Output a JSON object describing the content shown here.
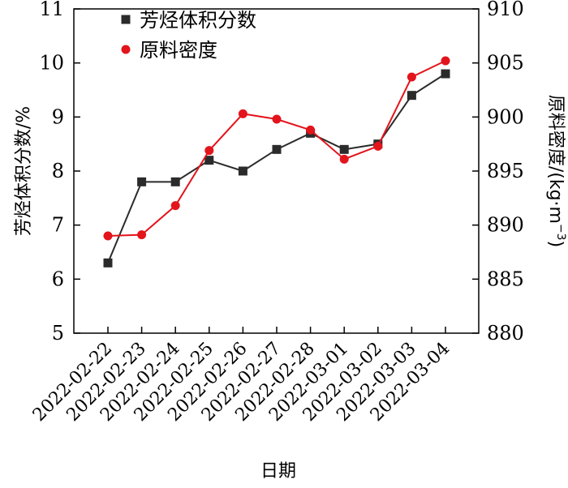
{
  "chart_data": {
    "type": "line",
    "xlabel": "日期",
    "ylabel_left": "芳烃体积分数/%",
    "ylabel_right": "原料密度/(kg·m",
    "ylabel_right_sup": "−3",
    "ylabel_right_close": ")",
    "categories": [
      "2022-02-22",
      "2022-02-23",
      "2022-02-24",
      "2022-02-25",
      "2022-02-26",
      "2022-02-27",
      "2022-02-28",
      "2022-03-01",
      "2022-03-02",
      "2022-03-03",
      "2022-03-04"
    ],
    "left_axis": {
      "range": [
        5,
        11
      ],
      "ticks": [
        "5",
        "6",
        "7",
        "8",
        "9",
        "10",
        "11"
      ]
    },
    "right_axis": {
      "range": [
        880,
        910
      ],
      "ticks": [
        "880",
        "885",
        "890",
        "895",
        "900",
        "905",
        "910"
      ]
    },
    "grid": false,
    "legend_position": "top-left",
    "series": [
      {
        "name": "芳烃体积分数",
        "axis": "left",
        "marker": "square",
        "color": "#2b2b2b",
        "values": [
          6.3,
          7.8,
          7.8,
          8.2,
          8.0,
          8.4,
          8.7,
          8.4,
          8.5,
          9.4,
          9.8
        ]
      },
      {
        "name": "原料密度",
        "axis": "right",
        "marker": "circle",
        "color": "#e3141c",
        "values": [
          889.0,
          889.1,
          891.8,
          896.9,
          900.3,
          899.8,
          898.8,
          896.1,
          897.3,
          903.7,
          905.2
        ]
      }
    ]
  }
}
